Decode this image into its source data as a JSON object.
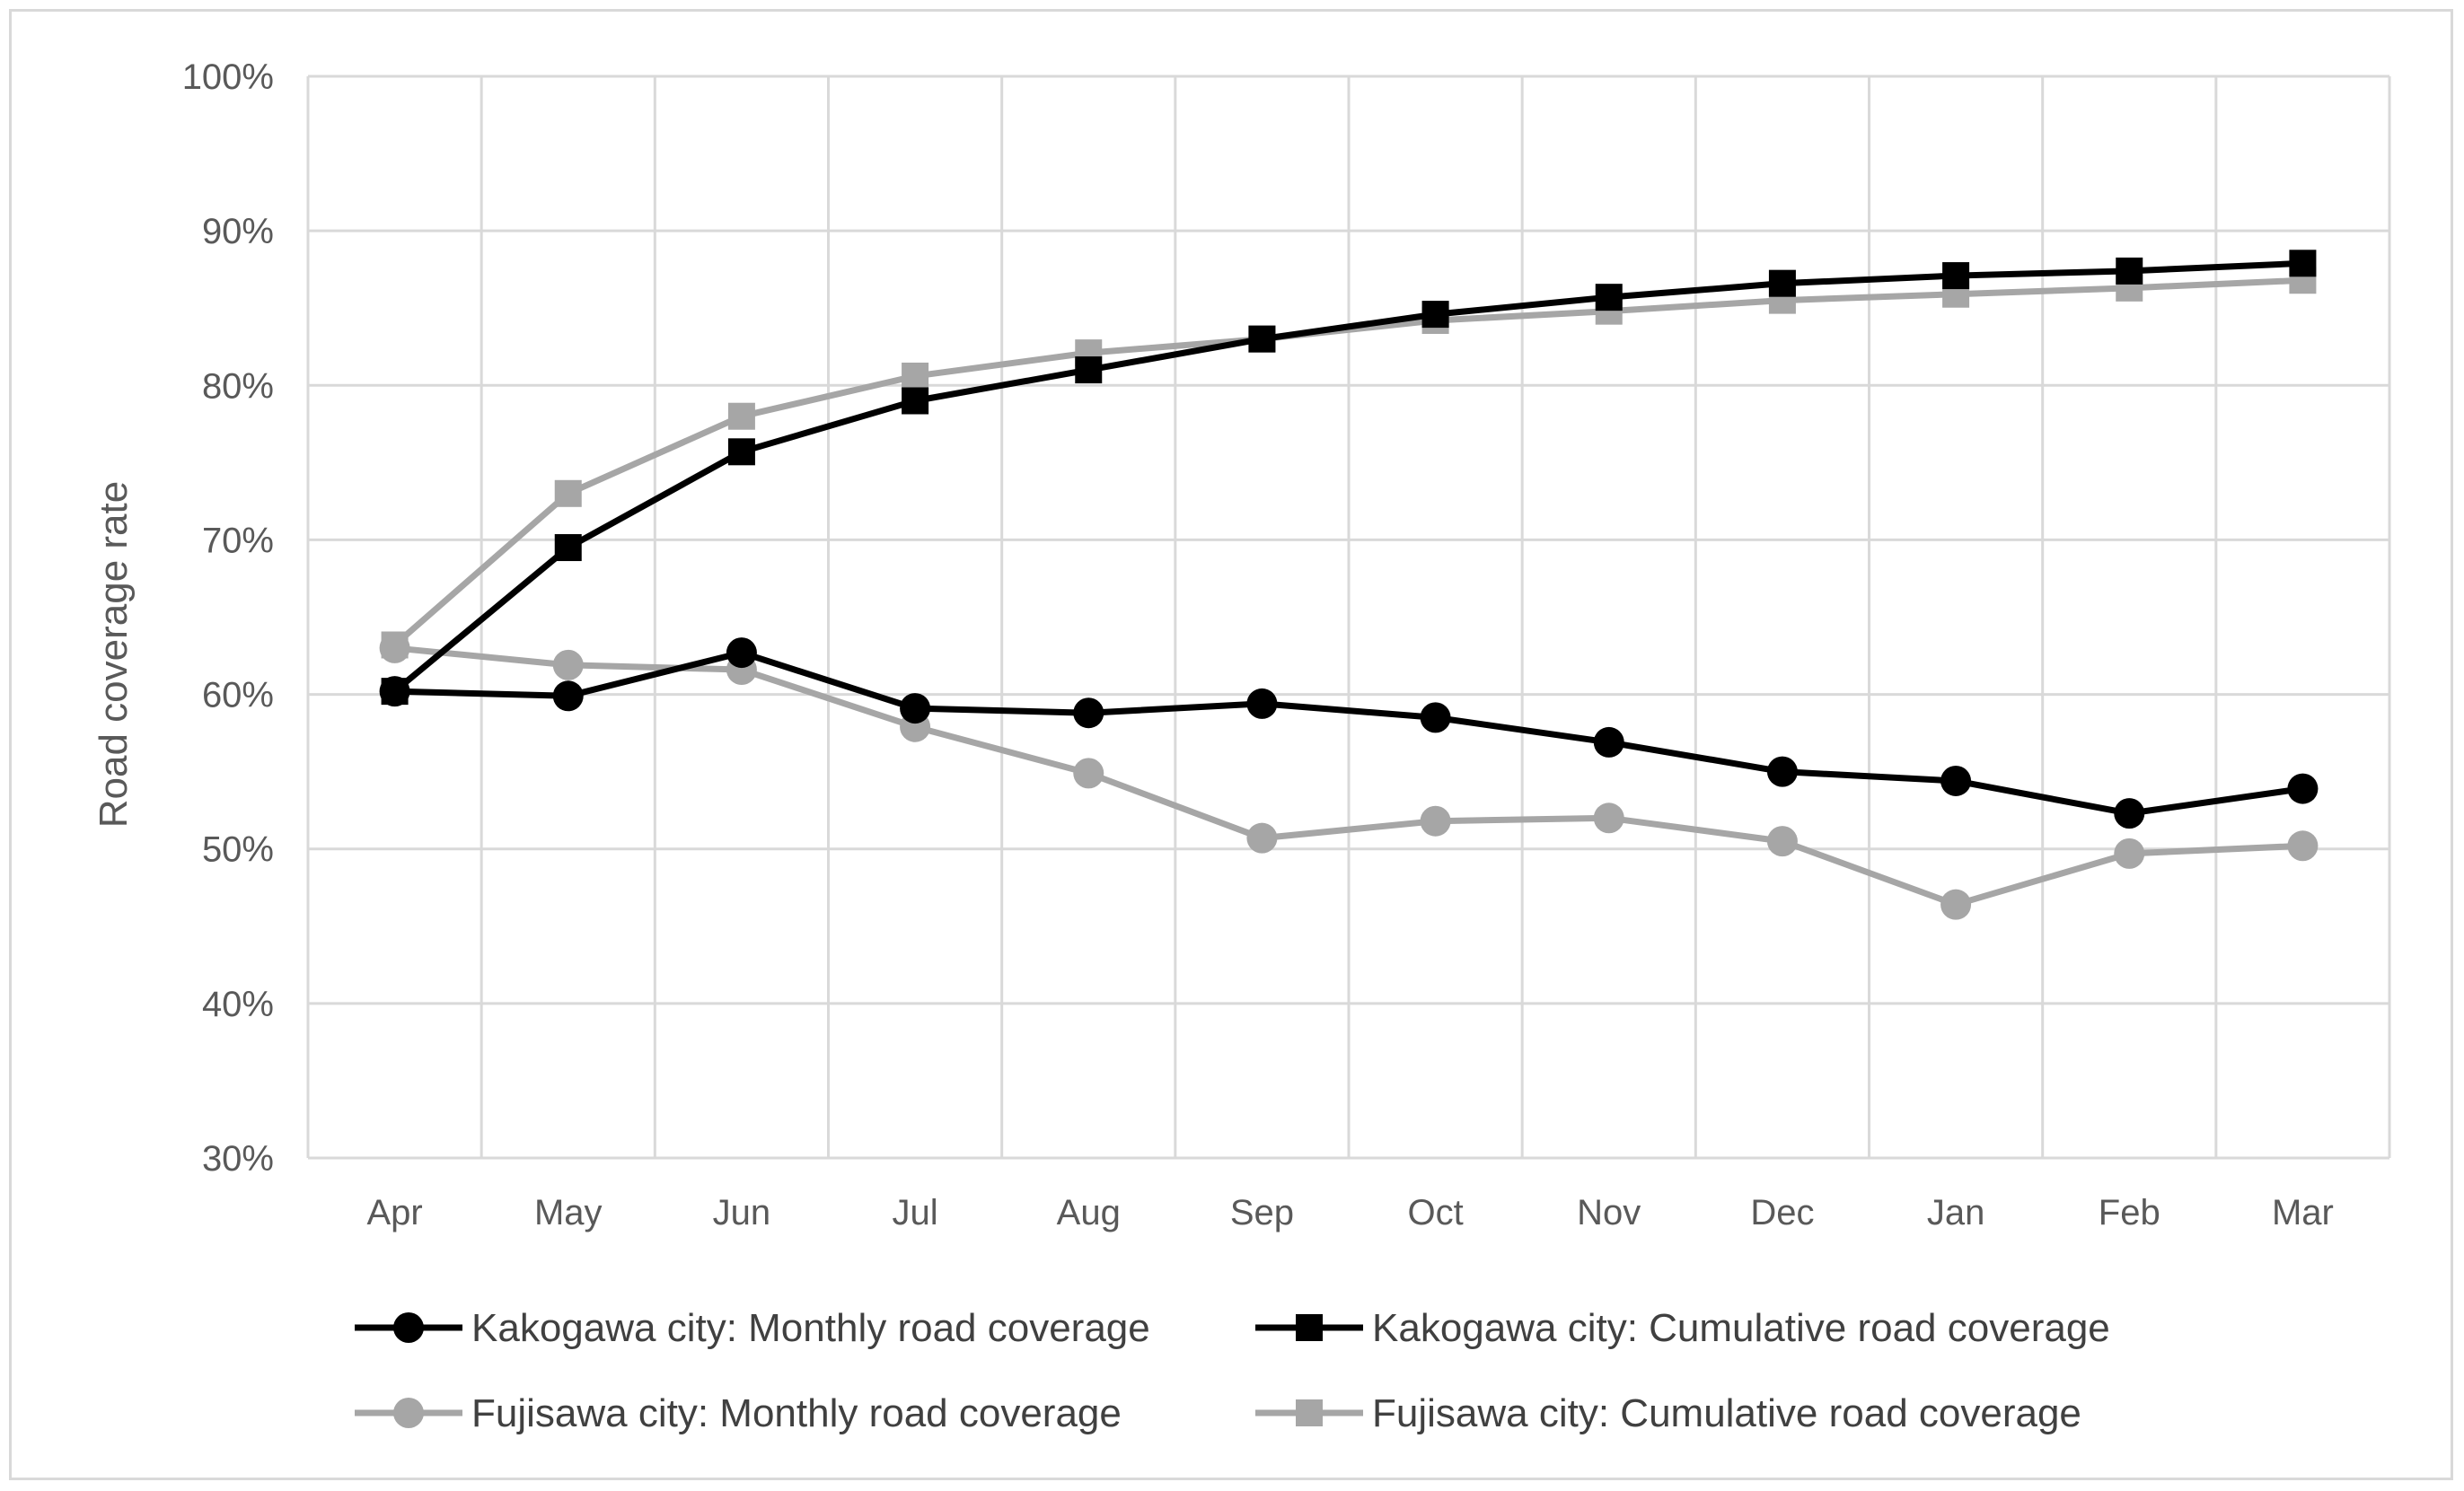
{
  "chart_data": {
    "type": "line",
    "title": "",
    "xlabel": "",
    "ylabel": "Road coverage rate",
    "ylim": [
      30,
      100
    ],
    "y_ticks": [
      "30%",
      "40%",
      "50%",
      "60%",
      "70%",
      "80%",
      "90%",
      "100%"
    ],
    "y_tick_values": [
      30,
      40,
      50,
      60,
      70,
      80,
      90,
      100
    ],
    "grid": true,
    "legend_position": "bottom",
    "categories": [
      "Apr",
      "May",
      "Jun",
      "Jul",
      "Aug",
      "Sep",
      "Oct",
      "Nov",
      "Dec",
      "Jan",
      "Feb",
      "Mar"
    ],
    "series": [
      {
        "name": "Kakogawa city: Monthly road coverage",
        "color": "#000000",
        "marker": "circle",
        "values": [
          60.2,
          59.9,
          62.7,
          59.1,
          58.8,
          59.4,
          58.5,
          56.9,
          55.0,
          54.4,
          52.3,
          53.9
        ]
      },
      {
        "name": "Kakogawa city: Cumulative road coverage",
        "color": "#000000",
        "marker": "square",
        "values": [
          60.2,
          69.5,
          75.7,
          79.0,
          81.0,
          83.0,
          84.6,
          85.7,
          86.6,
          87.1,
          87.4,
          87.9
        ]
      },
      {
        "name": "Fujisawa city: Monthly road coverage",
        "color": "#a6a6a6",
        "marker": "circle",
        "values": [
          63.0,
          61.9,
          61.6,
          57.9,
          54.9,
          50.7,
          51.8,
          52.0,
          50.5,
          46.4,
          49.7,
          50.2
        ]
      },
      {
        "name": "Fujisawa city: Cumulative road coverage",
        "color": "#a6a6a6",
        "marker": "square",
        "values": [
          63.2,
          73.0,
          78.0,
          80.6,
          82.1,
          83.0,
          84.2,
          84.8,
          85.5,
          85.9,
          86.3,
          86.8
        ]
      }
    ]
  }
}
